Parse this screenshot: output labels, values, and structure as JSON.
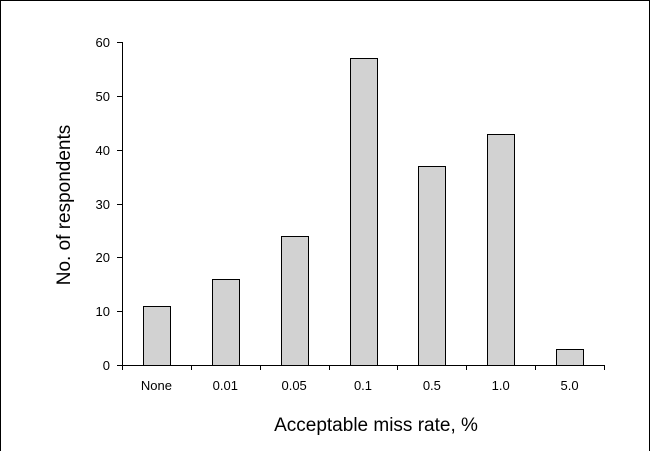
{
  "chart_data": {
    "type": "bar",
    "categories": [
      "None",
      "0.01",
      "0.05",
      "0.1",
      "0.5",
      "1.0",
      "5.0"
    ],
    "values": [
      11,
      16,
      24,
      57,
      37,
      43,
      3
    ],
    "xlabel": "Acceptable miss rate, %",
    "ylabel": "No. of  respondents",
    "ylim": [
      0,
      60
    ],
    "yticks": [
      0,
      10,
      20,
      30,
      40,
      50,
      60
    ],
    "grid": false,
    "bar_color": "#d2d2d2",
    "outline_color": "#000000"
  }
}
